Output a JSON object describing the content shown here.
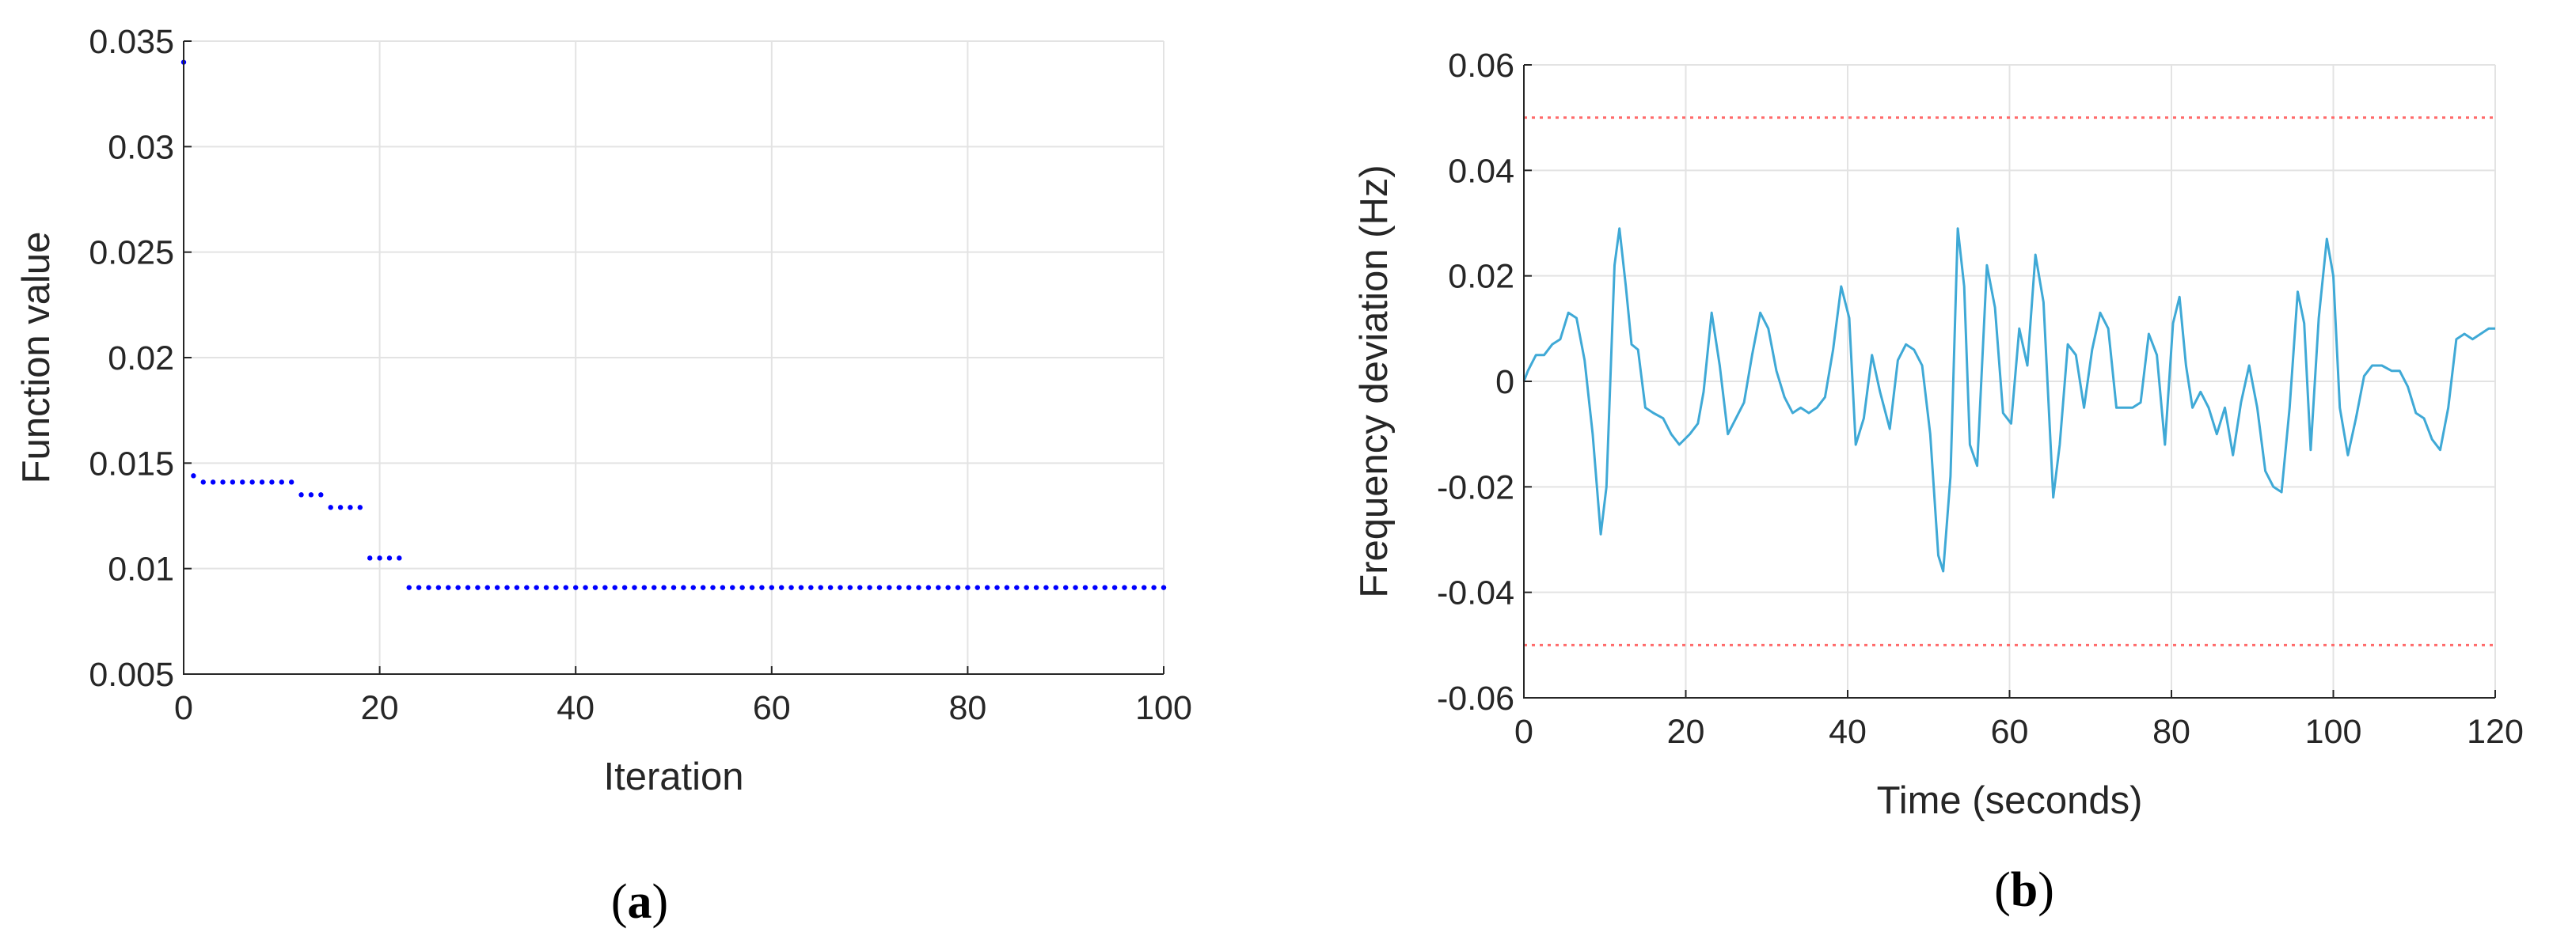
{
  "chart_data": [
    {
      "type": "scatter",
      "caption": {
        "open": "(",
        "letter": "a",
        "close": ")"
      },
      "xlabel": "Iteration",
      "ylabel": "Function value",
      "xlim": [
        0,
        100
      ],
      "ylim": [
        0.005,
        0.035
      ],
      "xticks": [
        0,
        20,
        40,
        60,
        80,
        100
      ],
      "xtick_labels": [
        "0",
        "20",
        "40",
        "60",
        "80",
        "100"
      ],
      "yticks": [
        0.005,
        0.01,
        0.015,
        0.02,
        0.025,
        0.03,
        0.035
      ],
      "ytick_labels": [
        "0.005",
        "0.01",
        "0.015",
        "0.02",
        "0.025",
        "0.03",
        "0.035"
      ],
      "grid": true,
      "series": [
        {
          "color": "#0000ff",
          "points": [
            [
              0,
              0.034
            ],
            [
              1,
              0.0144
            ],
            [
              2,
              0.0141
            ],
            [
              3,
              0.0141
            ],
            [
              4,
              0.0141
            ],
            [
              5,
              0.0141
            ],
            [
              6,
              0.0141
            ],
            [
              7,
              0.0141
            ],
            [
              8,
              0.0141
            ],
            [
              9,
              0.0141
            ],
            [
              10,
              0.0141
            ],
            [
              11,
              0.0141
            ],
            [
              12,
              0.0135
            ],
            [
              13,
              0.0135
            ],
            [
              14,
              0.0135
            ],
            [
              15,
              0.0129
            ],
            [
              16,
              0.0129
            ],
            [
              17,
              0.0129
            ],
            [
              18,
              0.0129
            ],
            [
              19,
              0.0105
            ],
            [
              20,
              0.0105
            ],
            [
              21,
              0.0105
            ],
            [
              22,
              0.0105
            ],
            [
              23,
              0.0091
            ],
            [
              24,
              0.0091
            ],
            [
              25,
              0.0091
            ],
            [
              26,
              0.0091
            ],
            [
              27,
              0.0091
            ],
            [
              28,
              0.0091
            ],
            [
              29,
              0.0091
            ],
            [
              30,
              0.0091
            ],
            [
              31,
              0.0091
            ],
            [
              32,
              0.0091
            ],
            [
              33,
              0.0091
            ],
            [
              34,
              0.0091
            ],
            [
              35,
              0.0091
            ],
            [
              36,
              0.0091
            ],
            [
              37,
              0.0091
            ],
            [
              38,
              0.0091
            ],
            [
              39,
              0.0091
            ],
            [
              40,
              0.0091
            ],
            [
              41,
              0.0091
            ],
            [
              42,
              0.0091
            ],
            [
              43,
              0.0091
            ],
            [
              44,
              0.0091
            ],
            [
              45,
              0.0091
            ],
            [
              46,
              0.0091
            ],
            [
              47,
              0.0091
            ],
            [
              48,
              0.0091
            ],
            [
              49,
              0.0091
            ],
            [
              50,
              0.0091
            ],
            [
              51,
              0.0091
            ],
            [
              52,
              0.0091
            ],
            [
              53,
              0.0091
            ],
            [
              54,
              0.0091
            ],
            [
              55,
              0.0091
            ],
            [
              56,
              0.0091
            ],
            [
              57,
              0.0091
            ],
            [
              58,
              0.0091
            ],
            [
              59,
              0.0091
            ],
            [
              60,
              0.0091
            ],
            [
              61,
              0.0091
            ],
            [
              62,
              0.0091
            ],
            [
              63,
              0.0091
            ],
            [
              64,
              0.0091
            ],
            [
              65,
              0.0091
            ],
            [
              66,
              0.0091
            ],
            [
              67,
              0.0091
            ],
            [
              68,
              0.0091
            ],
            [
              69,
              0.0091
            ],
            [
              70,
              0.0091
            ],
            [
              71,
              0.0091
            ],
            [
              72,
              0.0091
            ],
            [
              73,
              0.0091
            ],
            [
              74,
              0.0091
            ],
            [
              75,
              0.0091
            ],
            [
              76,
              0.0091
            ],
            [
              77,
              0.0091
            ],
            [
              78,
              0.0091
            ],
            [
              79,
              0.0091
            ],
            [
              80,
              0.0091
            ],
            [
              81,
              0.0091
            ],
            [
              82,
              0.0091
            ],
            [
              83,
              0.0091
            ],
            [
              84,
              0.0091
            ],
            [
              85,
              0.0091
            ],
            [
              86,
              0.0091
            ],
            [
              87,
              0.0091
            ],
            [
              88,
              0.0091
            ],
            [
              89,
              0.0091
            ],
            [
              90,
              0.0091
            ],
            [
              91,
              0.0091
            ],
            [
              92,
              0.0091
            ],
            [
              93,
              0.0091
            ],
            [
              94,
              0.0091
            ],
            [
              95,
              0.0091
            ],
            [
              96,
              0.0091
            ],
            [
              97,
              0.0091
            ],
            [
              98,
              0.0091
            ],
            [
              99,
              0.0091
            ],
            [
              100,
              0.0091
            ]
          ]
        }
      ]
    },
    {
      "type": "line",
      "caption": {
        "open": "(",
        "letter": "b",
        "close": ")"
      },
      "xlabel": "Time (seconds)",
      "ylabel": "Frequency deviation (Hz)",
      "xlim": [
        0,
        120
      ],
      "ylim": [
        -0.06,
        0.06
      ],
      "xticks": [
        0,
        20,
        40,
        60,
        80,
        100,
        120
      ],
      "xtick_labels": [
        "0",
        "20",
        "40",
        "60",
        "80",
        "100",
        "120"
      ],
      "yticks": [
        -0.06,
        -0.04,
        -0.02,
        0,
        0.02,
        0.04,
        0.06
      ],
      "ytick_labels": [
        "-0.06",
        "-0.04",
        "-0.02",
        "0",
        "0.02",
        "0.04",
        "0.06"
      ],
      "grid": true,
      "reference_lines": [
        {
          "y": 0.05,
          "color": "#ff6b6b",
          "style": "dotted"
        },
        {
          "y": -0.05,
          "color": "#ff6b6b",
          "style": "dotted"
        }
      ],
      "series": [
        {
          "color": "#3fa9d6",
          "points": [
            [
              0,
              0.0
            ],
            [
              0.5,
              0.002
            ],
            [
              1.5,
              0.005
            ],
            [
              2.5,
              0.005
            ],
            [
              3.5,
              0.007
            ],
            [
              4.5,
              0.008
            ],
            [
              5.5,
              0.013
            ],
            [
              6.5,
              0.012
            ],
            [
              7.5,
              0.004
            ],
            [
              8.5,
              -0.01
            ],
            [
              9.5,
              -0.029
            ],
            [
              10.2,
              -0.02
            ],
            [
              11.2,
              0.022
            ],
            [
              11.8,
              0.029
            ],
            [
              12.6,
              0.018
            ],
            [
              13.3,
              0.007
            ],
            [
              14.1,
              0.006
            ],
            [
              15.0,
              -0.005
            ],
            [
              16.0,
              -0.006
            ],
            [
              17.2,
              -0.007
            ],
            [
              18.2,
              -0.01
            ],
            [
              19.2,
              -0.012
            ],
            [
              20.5,
              -0.01
            ],
            [
              21.5,
              -0.008
            ],
            [
              22.2,
              -0.002
            ],
            [
              23.2,
              0.013
            ],
            [
              24.2,
              0.003
            ],
            [
              25.2,
              -0.01
            ],
            [
              26.2,
              -0.007
            ],
            [
              27.2,
              -0.004
            ],
            [
              28.2,
              0.005
            ],
            [
              29.2,
              0.013
            ],
            [
              30.2,
              0.01
            ],
            [
              31.2,
              0.002
            ],
            [
              32.2,
              -0.003
            ],
            [
              33.2,
              -0.006
            ],
            [
              34.2,
              -0.005
            ],
            [
              35.2,
              -0.006
            ],
            [
              36.2,
              -0.005
            ],
            [
              37.2,
              -0.003
            ],
            [
              38.2,
              0.006
            ],
            [
              39.2,
              0.018
            ],
            [
              40.2,
              0.012
            ],
            [
              41.0,
              -0.012
            ],
            [
              42.0,
              -0.007
            ],
            [
              43.0,
              0.005
            ],
            [
              44.0,
              -0.002
            ],
            [
              45.2,
              -0.009
            ],
            [
              46.2,
              0.004
            ],
            [
              47.2,
              0.007
            ],
            [
              48.2,
              0.006
            ],
            [
              49.2,
              0.003
            ],
            [
              50.2,
              -0.01
            ],
            [
              51.2,
              -0.033
            ],
            [
              51.8,
              -0.036
            ],
            [
              52.7,
              -0.018
            ],
            [
              53.6,
              0.029
            ],
            [
              54.4,
              0.018
            ],
            [
              55.1,
              -0.012
            ],
            [
              56.0,
              -0.016
            ],
            [
              57.2,
              0.022
            ],
            [
              58.2,
              0.014
            ],
            [
              59.2,
              -0.006
            ],
            [
              60.2,
              -0.008
            ],
            [
              61.2,
              0.01
            ],
            [
              62.2,
              0.003
            ],
            [
              63.2,
              0.024
            ],
            [
              64.2,
              0.015
            ],
            [
              65.4,
              -0.022
            ],
            [
              66.2,
              -0.012
            ],
            [
              67.2,
              0.007
            ],
            [
              68.2,
              0.005
            ],
            [
              69.2,
              -0.005
            ],
            [
              70.2,
              0.006
            ],
            [
              71.2,
              0.013
            ],
            [
              72.2,
              0.01
            ],
            [
              73.2,
              -0.005
            ],
            [
              74.2,
              -0.005
            ],
            [
              75.2,
              -0.005
            ],
            [
              76.2,
              -0.004
            ],
            [
              77.2,
              0.009
            ],
            [
              78.2,
              0.005
            ],
            [
              79.2,
              -0.012
            ],
            [
              80.2,
              0.011
            ],
            [
              81.0,
              0.016
            ],
            [
              81.8,
              0.003
            ],
            [
              82.6,
              -0.005
            ],
            [
              83.6,
              -0.002
            ],
            [
              84.6,
              -0.005
            ],
            [
              85.6,
              -0.01
            ],
            [
              86.6,
              -0.005
            ],
            [
              87.6,
              -0.014
            ],
            [
              88.6,
              -0.004
            ],
            [
              89.6,
              0.003
            ],
            [
              90.6,
              -0.005
            ],
            [
              91.6,
              -0.017
            ],
            [
              92.6,
              -0.02
            ],
            [
              93.6,
              -0.021
            ],
            [
              94.6,
              -0.005
            ],
            [
              95.6,
              0.017
            ],
            [
              96.4,
              0.011
            ],
            [
              97.2,
              -0.013
            ],
            [
              98.2,
              0.012
            ],
            [
              99.2,
              0.027
            ],
            [
              100.0,
              0.02
            ],
            [
              100.8,
              -0.005
            ],
            [
              101.8,
              -0.014
            ],
            [
              102.8,
              -0.007
            ],
            [
              103.8,
              0.001
            ],
            [
              104.8,
              0.003
            ],
            [
              106.0,
              0.003
            ],
            [
              107.2,
              0.002
            ],
            [
              108.2,
              0.002
            ],
            [
              109.2,
              -0.001
            ],
            [
              110.2,
              -0.006
            ],
            [
              111.2,
              -0.007
            ],
            [
              112.2,
              -0.011
            ],
            [
              113.2,
              -0.013
            ],
            [
              114.2,
              -0.005
            ],
            [
              115.2,
              0.008
            ],
            [
              116.2,
              0.009
            ],
            [
              117.2,
              0.008
            ],
            [
              118.2,
              0.009
            ],
            [
              119.2,
              0.01
            ],
            [
              120,
              0.01
            ]
          ]
        }
      ]
    }
  ]
}
